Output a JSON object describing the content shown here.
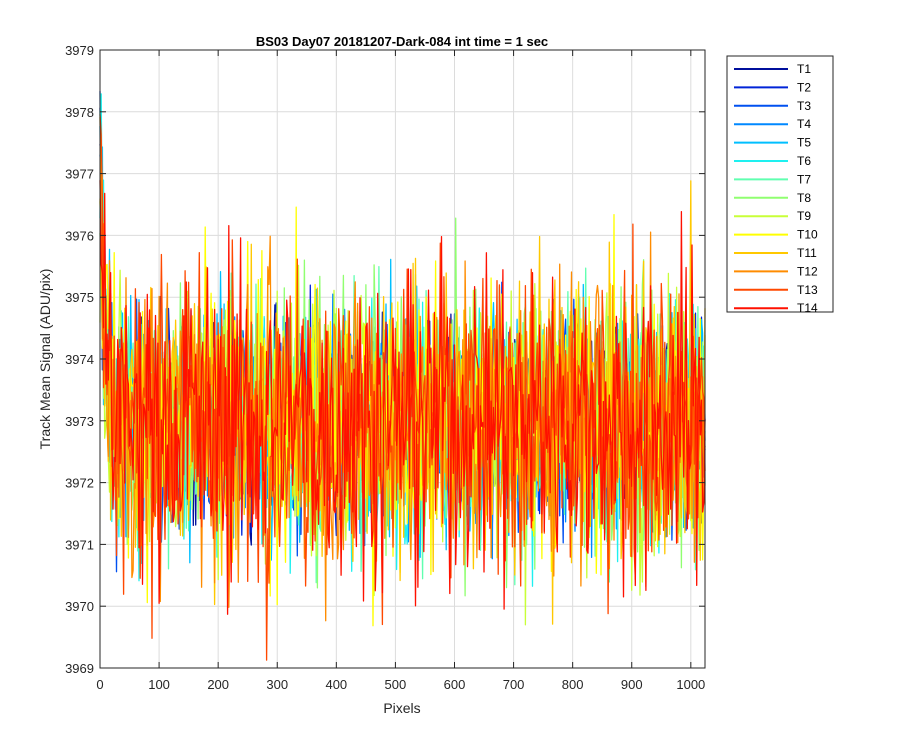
{
  "chart_data": {
    "type": "line",
    "title": "BS03 Day07 20181207-Dark-084 int time = 1 sec",
    "xlabel": "Pixels",
    "ylabel": "Track Mean Signal (ADU/pix)",
    "xlim": [
      0,
      1024
    ],
    "ylim": [
      3969,
      3979
    ],
    "xticks": [
      "0",
      "100",
      "200",
      "300",
      "400",
      "500",
      "600",
      "700",
      "800",
      "900",
      "1000"
    ],
    "yticks": [
      "3969",
      "3970",
      "3971",
      "3972",
      "3973",
      "3974",
      "3975",
      "3976",
      "3977",
      "3978",
      "3979"
    ],
    "grid": true,
    "legend_position": "outside-top-right",
    "mean_level": 3973,
    "initial_peak": 3978.7,
    "approx_min": 3969.1,
    "approx_max": 3977.3,
    "series": [
      {
        "name": "T1",
        "color": "#000f9c"
      },
      {
        "name": "T2",
        "color": "#0024d8"
      },
      {
        "name": "T3",
        "color": "#0050f0"
      },
      {
        "name": "T4",
        "color": "#0088ff"
      },
      {
        "name": "T5",
        "color": "#00bfff"
      },
      {
        "name": "T6",
        "color": "#1ef0f0"
      },
      {
        "name": "T7",
        "color": "#60ffb0"
      },
      {
        "name": "T8",
        "color": "#90ff70"
      },
      {
        "name": "T9",
        "color": "#c8ff38"
      },
      {
        "name": "T10",
        "color": "#ffff00"
      },
      {
        "name": "T11",
        "color": "#ffc800"
      },
      {
        "name": "T12",
        "color": "#ff8c00"
      },
      {
        "name": "T13",
        "color": "#ff4800"
      },
      {
        "name": "T14",
        "color": "#ff1000"
      }
    ]
  }
}
